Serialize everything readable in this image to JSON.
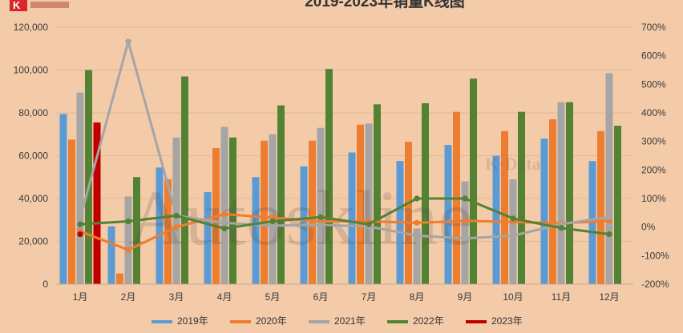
{
  "logo": {
    "letter": "K"
  },
  "watermark": {
    "main": "Autoskline",
    "sub": "K·Data"
  },
  "chart_data": {
    "type": "bar",
    "title": "2019-2023年销量K线图",
    "categories": [
      "1月",
      "2月",
      "3月",
      "4月",
      "5月",
      "6月",
      "7月",
      "8月",
      "9月",
      "10月",
      "11月",
      "12月"
    ],
    "y_left": {
      "min": 0,
      "max": 120000,
      "step": 20000,
      "tick_labels": [
        "0",
        "20,000",
        "40,000",
        "60,000",
        "80,000",
        "100,000",
        "120,000"
      ]
    },
    "y_right": {
      "min": -200,
      "max": 700,
      "step": 100,
      "tick_labels": [
        "-200%",
        "-100%",
        "0%",
        "100%",
        "200%",
        "300%",
        "400%",
        "500%",
        "600%",
        "700%"
      ]
    },
    "series": [
      {
        "name": "2019年",
        "color": "#5b9bd5",
        "values": [
          79500,
          27000,
          54500,
          43000,
          50000,
          55000,
          61500,
          57500,
          65000,
          60000,
          68000,
          57500
        ]
      },
      {
        "name": "2020年",
        "color": "#ed7d31",
        "values": [
          67500,
          5000,
          49000,
          63500,
          67000,
          67000,
          74500,
          66500,
          80500,
          71500,
          77000,
          71500
        ]
      },
      {
        "name": "2021年",
        "color": "#a5a5a5",
        "values": [
          89500,
          41000,
          68500,
          73500,
          70000,
          73000,
          75000,
          26000,
          48000,
          49000,
          85000,
          98500
        ]
      },
      {
        "name": "2022年",
        "color": "#548235",
        "values": [
          100000,
          50000,
          97000,
          68500,
          83500,
          100500,
          84000,
          84500,
          96000,
          80500,
          85000,
          74000
        ]
      },
      {
        "name": "2023年",
        "color": "#c00000",
        "values": [
          75500,
          null,
          null,
          null,
          null,
          null,
          null,
          null,
          null,
          null,
          null,
          null
        ]
      }
    ],
    "growth_lines": [
      {
        "name": "2020年",
        "color": "#ed7d31",
        "values": [
          -15,
          -80,
          0,
          45,
          33,
          20,
          20,
          15,
          22,
          18,
          13,
          22
        ]
      },
      {
        "name": "2021年",
        "color": "#a5a5a5",
        "values": [
          30,
          650,
          40,
          15,
          5,
          8,
          2,
          -30,
          -40,
          -30,
          10,
          35
        ]
      },
      {
        "name": "2022年",
        "color": "#548235",
        "values": [
          10,
          20,
          40,
          -5,
          20,
          35,
          10,
          100,
          100,
          30,
          -3,
          -25
        ]
      },
      {
        "name": "2023年",
        "color": "#c00000",
        "values": [
          -25,
          null,
          null,
          null,
          null,
          null,
          null,
          null,
          null,
          null,
          null,
          null
        ]
      }
    ],
    "legend": {
      "position": "bottom",
      "entries": [
        "2019年",
        "2020年",
        "2021年",
        "2022年",
        "2023年"
      ]
    }
  }
}
